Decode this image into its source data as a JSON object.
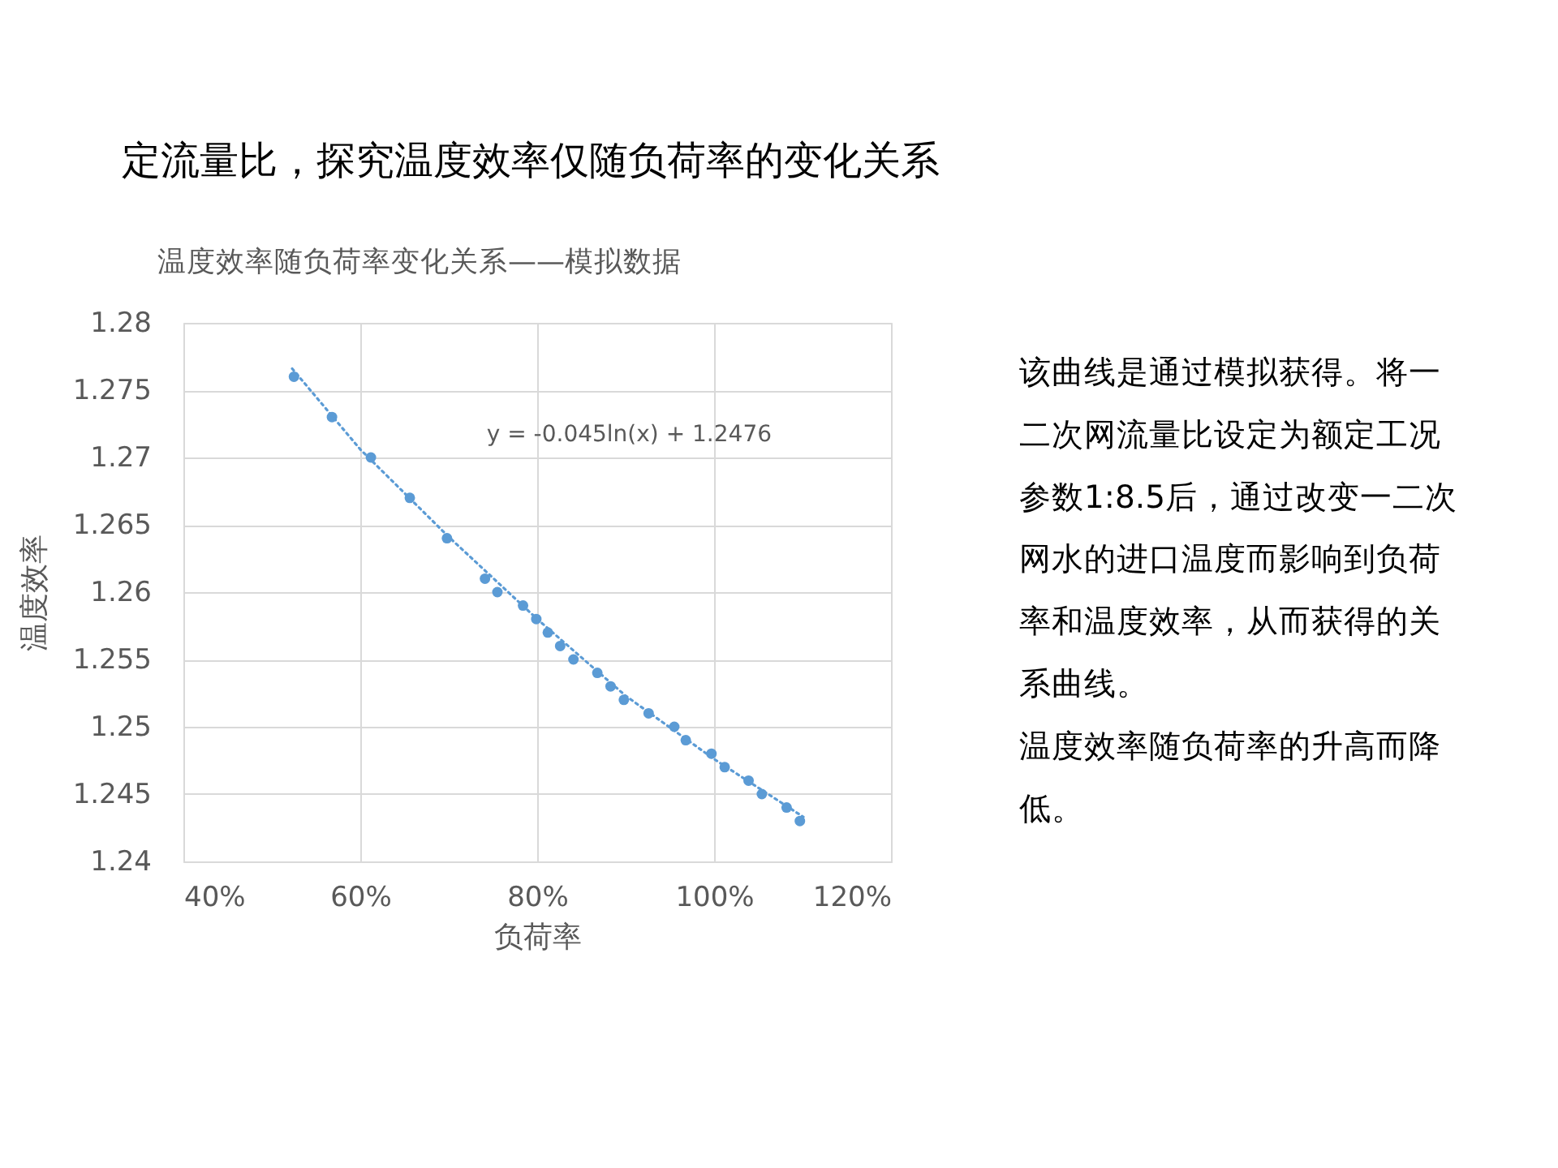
{
  "chart_data": {
    "type": "scatter",
    "title": "定流量比，探究温度效率仅随负荷率的变化关系",
    "subtitle": "温度效率随负荷率变化关系——模拟数据",
    "xlabel": "负荷率",
    "ylabel": "温度效率",
    "x": [
      52.5,
      56.8,
      61.2,
      65.6,
      69.8,
      74.1,
      75.5,
      78.4,
      79.9,
      81.2,
      82.6,
      84.1,
      86.8,
      88.3,
      89.8,
      92.6,
      95.5,
      96.8,
      99.7,
      101.2,
      103.9,
      105.4,
      108.2,
      109.7
    ],
    "series": [
      {
        "color": "#5b9bd5",
        "values": [
          1.276,
          1.273,
          1.27,
          1.267,
          1.264,
          1.261,
          1.26,
          1.259,
          1.258,
          1.257,
          1.256,
          1.255,
          1.254,
          1.253,
          1.252,
          1.251,
          1.25,
          1.249,
          1.248,
          1.247,
          1.246,
          1.245,
          1.244,
          1.243
        ]
      },
      {
        "type": "line",
        "color": "#5b9bd5",
        "line_style": "dotted",
        "marker": "none",
        "x": [
          52.3,
          60,
          70,
          80,
          90,
          100,
          110.1
        ],
        "values": [
          1.2766,
          1.2706,
          1.2641,
          1.258,
          1.2523,
          1.2476,
          1.2433
        ]
      }
    ],
    "marker": "circle",
    "xlim": [
      40,
      120
    ],
    "xticks": [
      {
        "value": 40,
        "label": "40%"
      },
      {
        "value": 60,
        "label": "60%"
      },
      {
        "value": 80,
        "label": "80%"
      },
      {
        "value": 100,
        "label": "100%"
      },
      {
        "value": 120,
        "label": "120%"
      }
    ],
    "ylim": [
      1.24,
      1.28
    ],
    "yticks": [
      1.24,
      1.245,
      1.25,
      1.255,
      1.26,
      1.265,
      1.27,
      1.275,
      1.28
    ],
    "grid": true,
    "annotations": [
      "y = -0.045ln(x) + 1.2476",
      "该曲线是通过模拟获得。将一二次网流量比设定为额定工况参数1:8.5后，通过改变一二次网水的进口温度而影响到负荷率和温度效率，从而获得的关系曲线。",
      "温度效率随负荷率的升高而降低。"
    ]
  }
}
